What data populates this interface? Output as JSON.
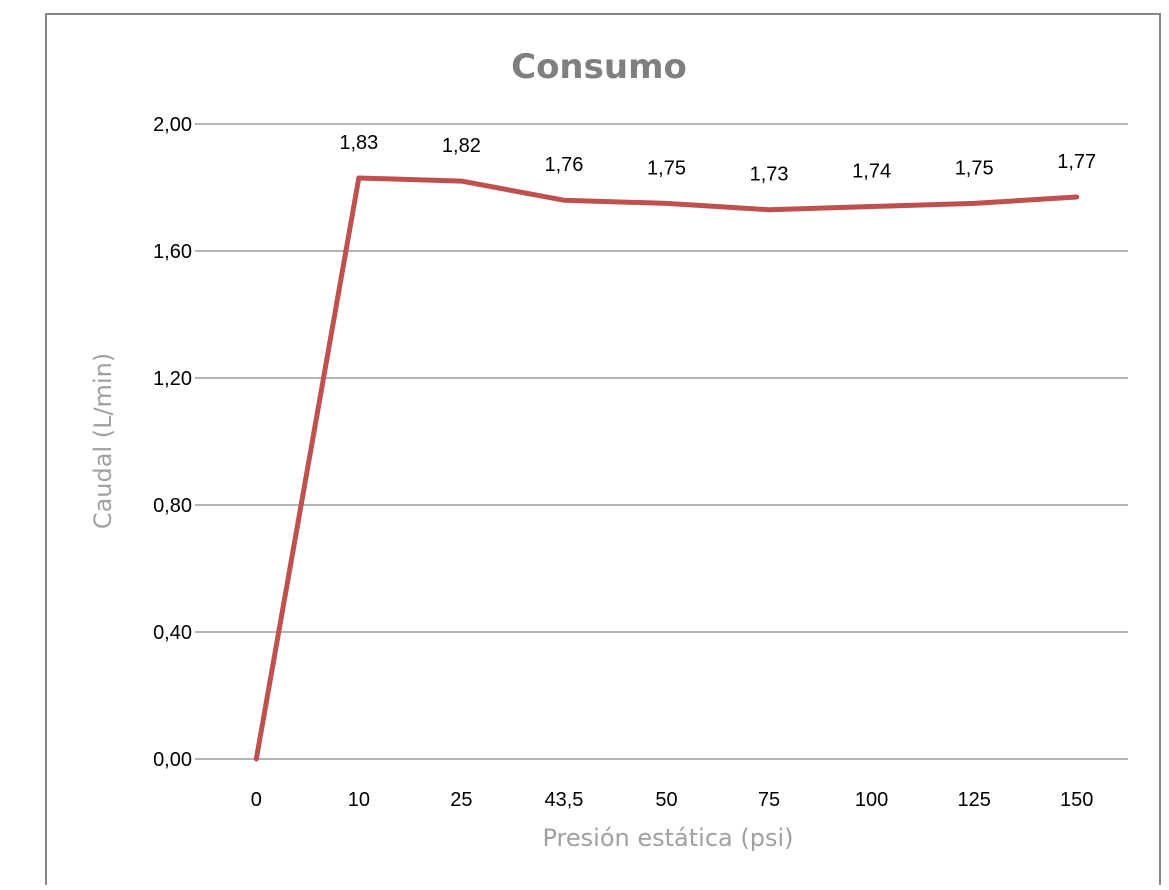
{
  "chart_data": {
    "type": "line",
    "title": "Consumo",
    "xlabel": "Presión estática (psi)",
    "ylabel": "Caudal (L/min)",
    "categories": [
      "0",
      "10",
      "25",
      "43,5",
      "50",
      "75",
      "100",
      "125",
      "150"
    ],
    "series": [
      {
        "values": [
          0,
          1.83,
          1.82,
          1.76,
          1.75,
          1.73,
          1.74,
          1.75,
          1.77
        ],
        "data_labels": [
          "",
          "1,83",
          "1,82",
          "1,76",
          "1,75",
          "1,73",
          "1,74",
          "1,75",
          "1,77"
        ],
        "color": "#c0504d"
      }
    ],
    "ylim": [
      0,
      2
    ],
    "yticks": [
      0,
      0.4,
      0.8,
      1.2,
      1.6,
      2.0
    ],
    "ytick_labels": [
      "0,00",
      "0,40",
      "0,80",
      "1,20",
      "1,60",
      "2,00"
    ],
    "grid": true,
    "legend": "none",
    "colors": {
      "line": "#c0504d",
      "grid": "#868686",
      "frame": "#868686",
      "title": "#7f7f7f",
      "axis_title": "#a0a0a0"
    }
  }
}
